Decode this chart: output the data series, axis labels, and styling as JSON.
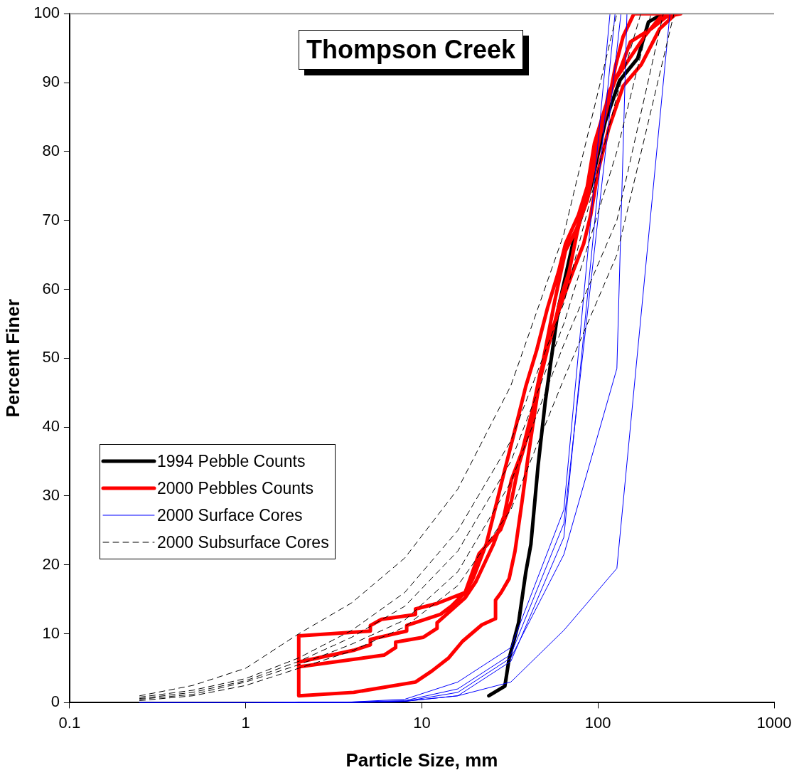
{
  "chart_data": {
    "type": "line",
    "title": "Thompson Creek",
    "xlabel": "Particle Size, mm",
    "ylabel": "Percent Finer",
    "log": "x",
    "xlim": [
      0.1,
      1000
    ],
    "xticks": [
      0.1,
      1,
      10,
      100,
      1000
    ],
    "ylim": [
      0,
      100
    ],
    "yticks": [
      0,
      10,
      20,
      30,
      40,
      50,
      60,
      70,
      80,
      90,
      100
    ],
    "grid": false,
    "legend": "left",
    "marker": "none",
    "series": [
      {
        "name": "1994 Pebble Counts",
        "color": "#000000",
        "line_style": "solid",
        "x": [
          24,
          29.6,
          31.3,
          35.4,
          38.9,
          41.6,
          45.7,
          50.2,
          59.6,
          71.9,
          91,
          109.9,
          132.7,
          167.9,
          193.6,
          233.8
        ],
        "values": [
          1,
          2.4,
          6.4,
          11.6,
          18.9,
          23,
          34.4,
          43.7,
          57.3,
          66.6,
          74.8,
          84.3,
          90.3,
          93.5,
          98.8,
          100
        ]
      },
      {
        "name": "2000 Pebbles Counts",
        "color": "#ff0000",
        "line_style": "solid",
        "x": [
          257,
          202.8,
          152.8,
          132.7,
          115.1,
          104.8,
          95.5,
          86.9,
          75.4,
          65.4,
          56.8,
          49.3,
          44.8,
          40,
          37.1,
          33.8,
          31.3,
          28.2,
          26.2,
          26.2,
          21.9,
          17,
          14.2,
          11.4,
          9.2,
          4.1,
          2,
          2,
          5.1,
          5.1,
          5.9,
          9.2,
          9.2,
          12.2,
          17.6,
          19.5,
          23.2,
          26.7,
          29.3,
          33.8,
          38.9,
          44.8,
          51.7,
          59.6,
          65.4,
          77.5,
          86.9,
          100,
          115,
          126,
          139,
          160,
          295,
          224,
          185,
          153,
          126,
          110,
          95.5,
          86.9,
          75.4,
          68.5,
          62.6,
          54.1,
          47,
          42.7,
          37.1,
          32.2,
          29.3,
          25.5,
          20.3,
          17.6,
          12.2,
          12.2,
          10.2,
          7.1,
          7.1,
          6.1,
          2,
          2,
          4.1,
          5.1,
          5.1,
          8.2,
          8.2,
          12.7,
          14.7,
          17.6,
          21.1,
          28,
          32.2,
          35.4,
          40.8,
          44.8,
          50.2,
          55.1,
          62.6,
          71.9,
          82.9,
          91,
          100,
          115,
          139,
          176,
          224,
          269
        ],
        "values": [
          100,
          97.9,
          95.9,
          91.7,
          88.6,
          83.4,
          78.2,
          72.9,
          68.7,
          65.6,
          58.3,
          50.2,
          43.9,
          35.5,
          29.3,
          22,
          18,
          16,
          14.9,
          12.2,
          11.3,
          8.9,
          6.5,
          4.6,
          3,
          1.5,
          1,
          9.7,
          10.4,
          11.2,
          12.1,
          12.8,
          13.6,
          14.4,
          16,
          18,
          23,
          29.2,
          33.4,
          39.6,
          45.9,
          51.1,
          57.3,
          62.5,
          66.6,
          70.8,
          74.9,
          81.1,
          87.3,
          92.5,
          96.7,
          100,
          100,
          99.4,
          96.8,
          93.7,
          90.5,
          86.4,
          81.2,
          74.9,
          67.7,
          62.5,
          59.4,
          53.1,
          47.9,
          42.7,
          36.5,
          32.3,
          27.1,
          23,
          17.6,
          15.2,
          11.6,
          10.8,
          9.5,
          8.8,
          8,
          6.9,
          5.2,
          5.9,
          7.6,
          8.4,
          9.2,
          10.4,
          11.2,
          12.8,
          14,
          16,
          21.6,
          25.1,
          29.2,
          34.4,
          39.6,
          44.8,
          50,
          54.2,
          58.3,
          62.5,
          66.6,
          70.8,
          77.1,
          83.3,
          89.5,
          92.6,
          97.8,
          99.7
        ]
      },
      {
        "name": "2000 Surface Cores",
        "color": "#0000ff",
        "line_style": "solid",
        "x": [
          0.25,
          0.5,
          1,
          2,
          4,
          8,
          16,
          32,
          64,
          117
        ],
        "values": [
          0,
          0,
          0,
          0.1,
          0.1,
          0.5,
          3,
          8,
          28,
          100
        ]
      },
      {
        "color": "#0000ff",
        "line_style": "solid",
        "x": [
          0.25,
          0.5,
          1,
          2,
          4,
          8,
          16,
          32,
          64,
          135
        ],
        "values": [
          0,
          0,
          0,
          0,
          0.1,
          0.3,
          2,
          7,
          26,
          100
        ]
      },
      {
        "color": "#0000ff",
        "line_style": "solid",
        "x": [
          0.25,
          0.5,
          1,
          2,
          4,
          8,
          16,
          32,
          64,
          125
        ],
        "values": [
          0,
          0,
          0,
          0,
          0,
          0.2,
          1,
          6,
          24,
          100
        ]
      },
      {
        "color": "#0000ff",
        "line_style": "solid",
        "x": [
          0.25,
          0.5,
          1,
          2,
          4,
          8,
          16,
          32,
          64,
          128,
          256
        ],
        "values": [
          0,
          0,
          0,
          0,
          0,
          0.2,
          1,
          3,
          10.5,
          19.5,
          100
        ]
      },
      {
        "color": "#0000ff",
        "line_style": "solid",
        "x": [
          0.25,
          0.5,
          1,
          2,
          4,
          8,
          16,
          32,
          64,
          128,
          146
        ],
        "values": [
          0,
          0,
          0,
          0,
          0,
          0.2,
          1.5,
          6.5,
          21.5,
          48.5,
          100
        ]
      },
      {
        "name": "2000 Subsurface Cores",
        "color": "#000000",
        "line_style": "dashed",
        "x": [
          0.25,
          0.5,
          1,
          2,
          4,
          8,
          16,
          32,
          64,
          128
        ],
        "values": [
          1,
          2.5,
          5,
          10,
          14.5,
          21,
          31,
          46,
          68,
          100
        ]
      },
      {
        "color": "#000000",
        "line_style": "dashed",
        "x": [
          0.25,
          0.5,
          1,
          2,
          4,
          8,
          16,
          32,
          64,
          128,
          175
        ],
        "values": [
          0.8,
          1.8,
          3.5,
          6.5,
          10.5,
          16,
          25,
          38,
          58,
          88,
          100
        ]
      },
      {
        "color": "#000000",
        "line_style": "dashed",
        "x": [
          0.25,
          0.5,
          1,
          2,
          4,
          8,
          16,
          32,
          64,
          128,
          200
        ],
        "values": [
          0.6,
          1.5,
          3.2,
          6,
          9.5,
          14,
          22,
          35,
          55,
          80,
          100
        ]
      },
      {
        "color": "#000000",
        "line_style": "dashed",
        "x": [
          0.25,
          0.5,
          1,
          2,
          4,
          8,
          16,
          32,
          64,
          128,
          235
        ],
        "values": [
          0.5,
          1.2,
          3,
          5.5,
          8.5,
          12,
          19,
          32,
          52,
          70,
          100
        ]
      },
      {
        "color": "#000000",
        "line_style": "dashed",
        "x": [
          0.25,
          0.5,
          1,
          2,
          4,
          8,
          16,
          32,
          64,
          128,
          270
        ],
        "values": [
          0.3,
          1,
          2.5,
          5,
          7.5,
          11,
          17,
          28,
          47,
          65,
          100
        ]
      }
    ]
  }
}
